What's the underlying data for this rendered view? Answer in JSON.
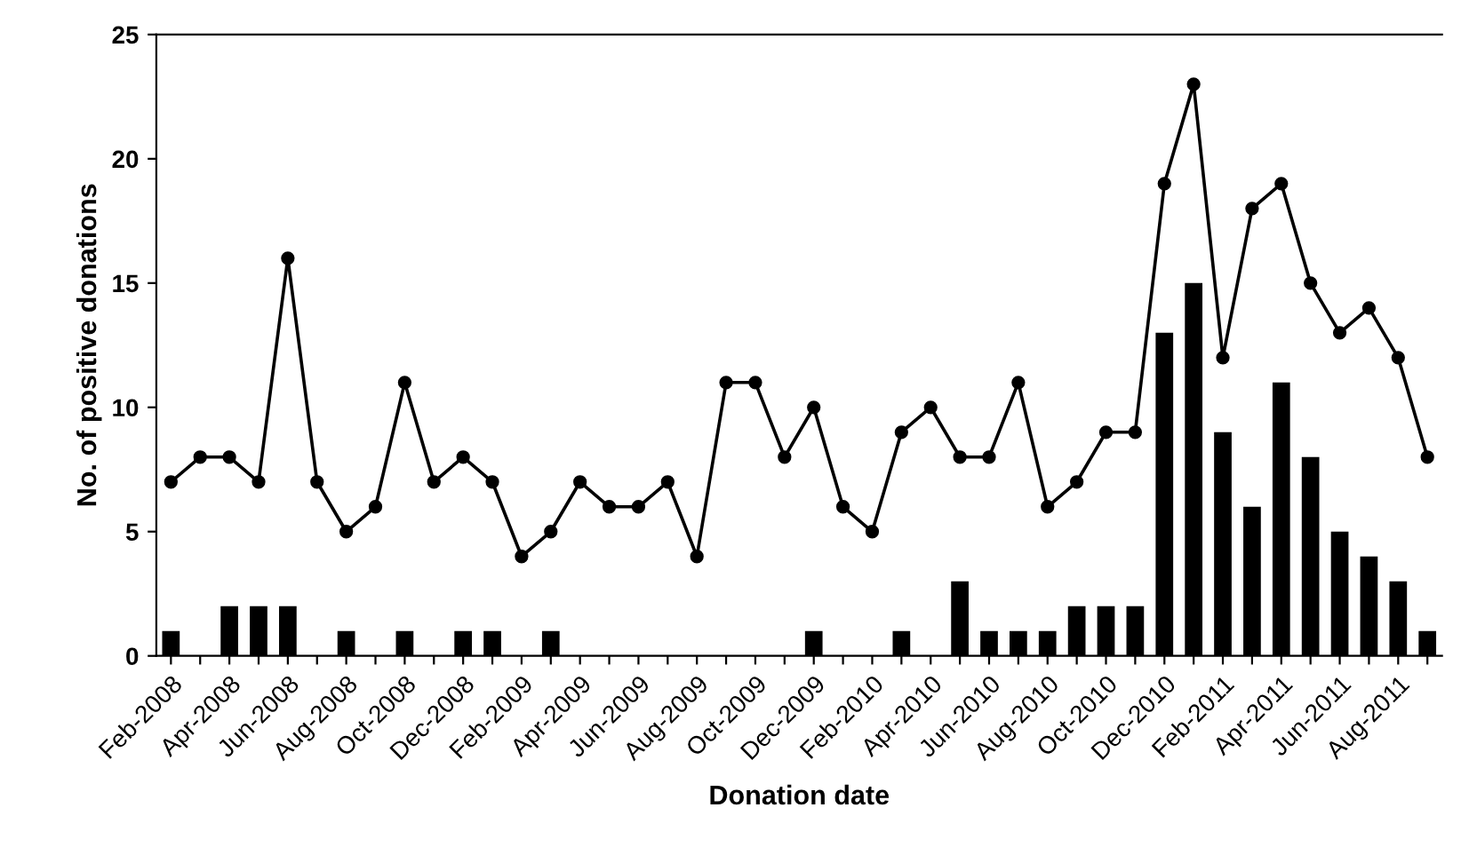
{
  "chart_data": {
    "type": "bar",
    "xlabel": "Donation date",
    "ylabel": "No. of positive donations",
    "categories": [
      "Feb-2008",
      null,
      "Apr-2008",
      null,
      "Jun-2008",
      null,
      "Aug-2008",
      null,
      "Oct-2008",
      null,
      "Dec-2008",
      null,
      "Feb-2009",
      null,
      "Apr-2009",
      null,
      "Jun-2009",
      null,
      "Aug-2009",
      null,
      "Oct-2009",
      null,
      "Dec-2009",
      null,
      "Feb-2010",
      null,
      "Apr-2010",
      null,
      "Jun-2010",
      null,
      "Aug-2010",
      null,
      "Oct-2010",
      null,
      "Dec-2010",
      null,
      "Feb-2011",
      null,
      "Apr-2011",
      null,
      "Jun-2011",
      null,
      "Aug-2011",
      null
    ],
    "series": [
      {
        "color": "#000000",
        "values": [
          1,
          0,
          2,
          2,
          2,
          0,
          1,
          0,
          1,
          0,
          1,
          1,
          0,
          1,
          0,
          0,
          0,
          0,
          0,
          0,
          0,
          0,
          1,
          0,
          0,
          1,
          0,
          3,
          1,
          1,
          1,
          2,
          2,
          2,
          13,
          15,
          9,
          6,
          11,
          8,
          5,
          4,
          3,
          1
        ]
      },
      {
        "type": "line",
        "color": "#000000",
        "marker": "circle",
        "line_style": "solid",
        "values": [
          7,
          8,
          8,
          7,
          16,
          7,
          5,
          6,
          11,
          7,
          8,
          7,
          4,
          5,
          7,
          6,
          6,
          7,
          4,
          11,
          11,
          8,
          10,
          6,
          5,
          9,
          10,
          8,
          8,
          11,
          6,
          7,
          9,
          9,
          19,
          23,
          12,
          18,
          19,
          15,
          13,
          14,
          12,
          8
        ]
      }
    ],
    "ylim": [
      0,
      25
    ],
    "yticks": [
      0,
      5,
      10,
      15,
      20,
      25
    ],
    "grid": false,
    "legend": false
  }
}
